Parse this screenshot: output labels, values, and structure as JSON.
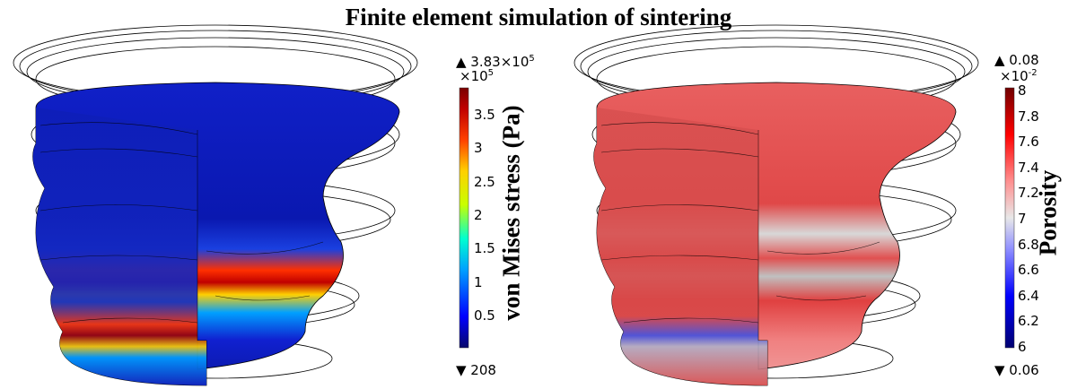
{
  "title": "Finite element simulation of sintering",
  "plots": [
    {
      "quantity": "von Mises stress (Pa)",
      "max_label": "▲ 3.83×10",
      "max_exp": "5",
      "multiplier": "×10",
      "multiplier_exp": "5",
      "min_label": "▼ 208",
      "ticks": [
        "3.5",
        "3",
        "2.5",
        "2",
        "1.5",
        "1",
        "0.5"
      ],
      "colormap": [
        "#08086b",
        "#0000ff",
        "#00a0ff",
        "#00ffd0",
        "#c8ff00",
        "#ffd000",
        "#ff4000",
        "#c00000",
        "#7a0000"
      ]
    },
    {
      "quantity": "Porosity",
      "max_label": "▲ 0.08",
      "multiplier": "×10",
      "multiplier_exp": "-2",
      "min_label": "▼ 0.06",
      "ticks": [
        "8",
        "7.8",
        "7.6",
        "7.4",
        "7.2",
        "7",
        "6.8",
        "6.6",
        "6.4",
        "6.2",
        "6"
      ],
      "colormap": [
        "#000070",
        "#0000ff",
        "#9090ff",
        "#e8e8e8",
        "#ff9090",
        "#ff0000",
        "#700000"
      ]
    }
  ]
}
